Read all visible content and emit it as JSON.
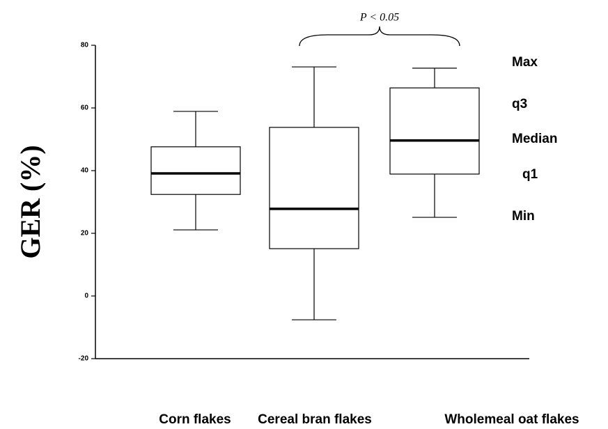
{
  "chart_data": {
    "type": "box",
    "y_label": "GER (%)",
    "categories": [
      "Corn flakes",
      "Cereal bran flakes",
      "Wholemeal oat flakes"
    ],
    "series": [
      {
        "color": "#ffffff",
        "values": [
          {
            "min": 21.1,
            "q1": 32.4,
            "median": 39.1,
            "q3": 47.6,
            "max": 58.9
          },
          {
            "min": -7.6,
            "q1": 15.1,
            "median": 27.8,
            "q3": 53.8,
            "max": 73.1
          },
          {
            "min": 25.1,
            "q1": 38.9,
            "median": 49.6,
            "q3": 66.4,
            "max": 72.7
          }
        ]
      }
    ],
    "ylim": [
      -20,
      80
    ],
    "yticks": [
      -20,
      0,
      20,
      40,
      60,
      80
    ],
    "annotation": "P < 0.05",
    "key_labels": [
      "Max",
      "q3",
      "Median",
      "q1",
      "Min"
    ]
  }
}
